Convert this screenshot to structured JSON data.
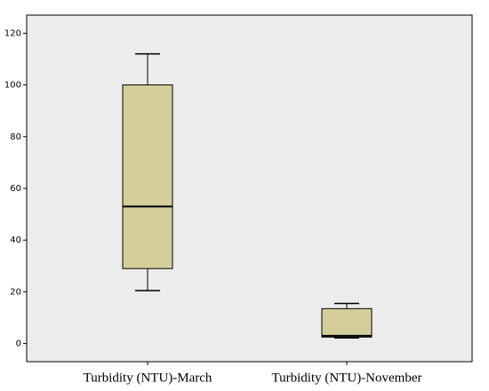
{
  "chart_data": {
    "type": "box",
    "categories": [
      "Turbidity (NTU)-March",
      "Turbidity (NTU)-November"
    ],
    "min": [
      20.5,
      2.2
    ],
    "q1": [
      29,
      2.5
    ],
    "median": [
      53,
      3
    ],
    "q3": [
      100,
      13.5
    ],
    "max": [
      112,
      15.5
    ],
    "color": "#d4cf9a",
    "ylim": [
      -7,
      127
    ],
    "yticks": [
      0,
      20,
      40,
      60,
      80,
      100,
      120
    ]
  }
}
